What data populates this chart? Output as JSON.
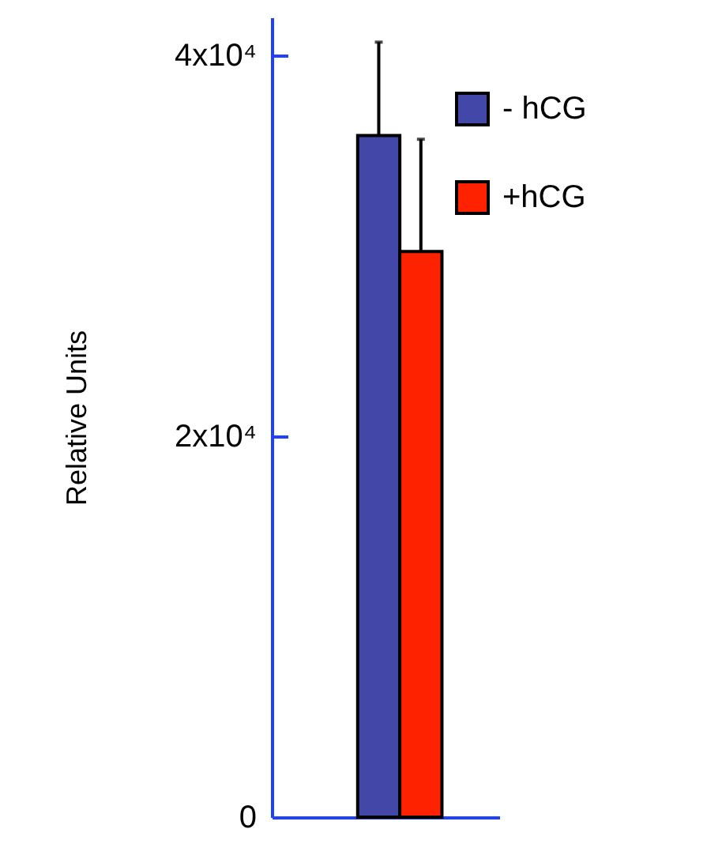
{
  "chart_data": {
    "type": "bar",
    "ylabel": "Relative Units",
    "categories": [
      null
    ],
    "series": [
      {
        "name": "- hCG",
        "color": "#4347a8",
        "values": [
          35800
        ],
        "errors": [
          4900
        ]
      },
      {
        "name": "+hCG",
        "color": "#ff2200",
        "values": [
          29700
        ],
        "errors": [
          5900
        ]
      }
    ],
    "ylim": [
      0,
      42000
    ],
    "yticks": [
      0,
      {
        "value": 20000,
        "label": "2x10⁴"
      },
      {
        "value": 40000,
        "label": "4x10⁴"
      }
    ],
    "tick_labels": "y",
    "grid": false,
    "legend": "top right"
  }
}
